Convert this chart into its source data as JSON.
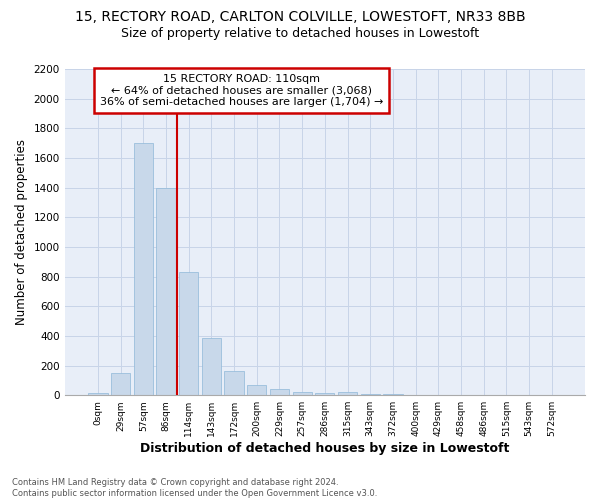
{
  "title1": "15, RECTORY ROAD, CARLTON COLVILLE, LOWESTOFT, NR33 8BB",
  "title2": "Size of property relative to detached houses in Lowestoft",
  "xlabel": "Distribution of detached houses by size in Lowestoft",
  "ylabel": "Number of detached properties",
  "footer1": "Contains HM Land Registry data © Crown copyright and database right 2024.",
  "footer2": "Contains public sector information licensed under the Open Government Licence v3.0.",
  "bar_labels": [
    "0sqm",
    "29sqm",
    "57sqm",
    "86sqm",
    "114sqm",
    "143sqm",
    "172sqm",
    "200sqm",
    "229sqm",
    "257sqm",
    "286sqm",
    "315sqm",
    "343sqm",
    "372sqm",
    "400sqm",
    "429sqm",
    "458sqm",
    "486sqm",
    "515sqm",
    "543sqm",
    "572sqm"
  ],
  "bar_values": [
    15,
    150,
    1700,
    1400,
    830,
    385,
    160,
    70,
    40,
    20,
    15,
    20,
    10,
    5,
    3,
    2,
    1,
    1,
    1,
    1,
    0
  ],
  "bar_color": "#c8d8ea",
  "bar_edgecolor": "#8fb8d8",
  "vline_x_index": 4,
  "vline_color": "#cc0000",
  "annotation_line1": "15 RECTORY ROAD: 110sqm",
  "annotation_line2": "← 64% of detached houses are smaller (3,068)",
  "annotation_line3": "36% of semi-detached houses are larger (1,704) →",
  "annotation_box_color": "#cc0000",
  "ylim": [
    0,
    2200
  ],
  "yticks": [
    0,
    200,
    400,
    600,
    800,
    1000,
    1200,
    1400,
    1600,
    1800,
    2000,
    2200
  ],
  "grid_color": "#c8d4e8",
  "background_color": "#e8eef8",
  "title1_fontsize": 10,
  "title2_fontsize": 9,
  "xlabel_fontsize": 9,
  "ylabel_fontsize": 8.5,
  "annot_fontsize": 8
}
